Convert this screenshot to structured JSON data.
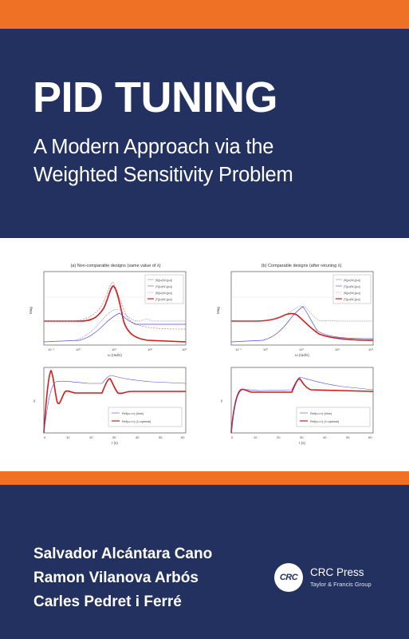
{
  "cover": {
    "title": "PID TUNING",
    "subtitle_line1": "A Modern Approach via the",
    "subtitle_line2": "Weighted Sensitivity Problem",
    "authors": [
      "Salvador Alcántara Cano",
      "Ramon Vilanova Arbós",
      "Carles Pedret i Ferré"
    ],
    "publisher": {
      "logo_text": "CRC",
      "name": "CRC Press",
      "tagline": "Taylor & Francis Group"
    },
    "colors": {
      "navy": "#233160",
      "orange": "#ee7125",
      "white": "#ffffff"
    }
  },
  "figure": {
    "panel_a_title": "(a) Non-comparable designs (same value of λ)",
    "panel_b_title": "(b) Comparable designs (after retuning λ)",
    "freq_xlabel": "ω (rad/s)",
    "time_xlabel": "t (s)",
    "mag_ylabel": "Mag",
    "time_ylabel": "y",
    "freq_ticks": [
      "10⁻¹",
      "10⁰",
      "10¹",
      "10²",
      "10³"
    ],
    "time_ticks": [
      "0",
      "10",
      "20",
      "30",
      "40",
      "50",
      "60"
    ],
    "legend_a_top": [
      "|S(jω)W₂(jω)|",
      "|T(jω)W₂(jω)|",
      "|S(jω)W₁(jω)|",
      "|T(jω)W₁(jω)|"
    ],
    "legend_a_bottom": [
      "Ref(ω=∞) (blue)",
      "Ref(ω=∞) (λ=optimal)"
    ],
    "legend_b_bottom": [
      "Ref(ω=∞) (blue)",
      "Ref(ω=∞) (λ=optimal)"
    ],
    "series_colors": {
      "red": "#d11a1a",
      "blue": "#4a4fd6",
      "gray": "#888888"
    }
  }
}
